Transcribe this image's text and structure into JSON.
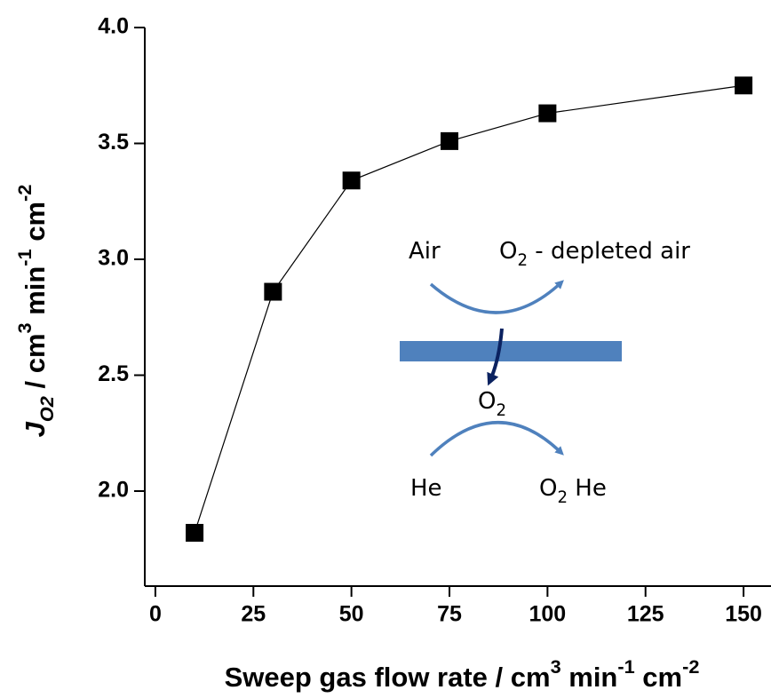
{
  "chart_data": {
    "type": "line",
    "x": [
      10,
      30,
      50,
      75,
      100,
      150
    ],
    "series": [
      {
        "name": "J O2",
        "color": "#000000",
        "values": [
          1.82,
          2.86,
          3.34,
          3.51,
          3.63,
          3.75
        ]
      }
    ],
    "xlim": [
      -2.7,
      157
    ],
    "ylim": [
      1.59,
      4.0
    ],
    "xticks": [
      0,
      25,
      50,
      75,
      100,
      125,
      150
    ],
    "yticks": [
      {
        "value": 2.0,
        "label": "2.0"
      },
      2.5,
      {
        "value": 3.0,
        "label": "3.0"
      },
      3.5,
      {
        "value": 4.0,
        "label": "4.0"
      }
    ],
    "xlabel": [
      {
        "text": "Sweep gas flow rate / cm"
      },
      {
        "text": "3",
        "script": "super"
      },
      {
        "text": " min"
      },
      {
        "text": "-1",
        "script": "super"
      },
      {
        "text": " cm"
      },
      {
        "text": "-2",
        "script": "super"
      }
    ],
    "ylabel": [
      {
        "text": "J",
        "italic": true
      },
      {
        "text": "O2",
        "script": "sub",
        "italic": true
      },
      {
        "text": " / cm"
      },
      {
        "text": "3",
        "script": "super"
      },
      {
        "text": " min"
      },
      {
        "text": "-1",
        "script": "super"
      },
      {
        "text": " cm"
      },
      {
        "text": "-2",
        "script": "super"
      }
    ],
    "annotations": [
      [
        {
          "text": "Air"
        }
      ],
      [
        {
          "text": "O"
        },
        {
          "text": "2",
          "script": "sub"
        },
        {
          "text": " - depleted air"
        }
      ],
      [
        {
          "text": "O"
        },
        {
          "text": "2",
          "script": "sub"
        }
      ],
      [
        {
          "text": "He"
        }
      ],
      [
        {
          "text": "O"
        },
        {
          "text": "2",
          "script": "sub"
        },
        {
          "text": " He"
        }
      ]
    ]
  }
}
